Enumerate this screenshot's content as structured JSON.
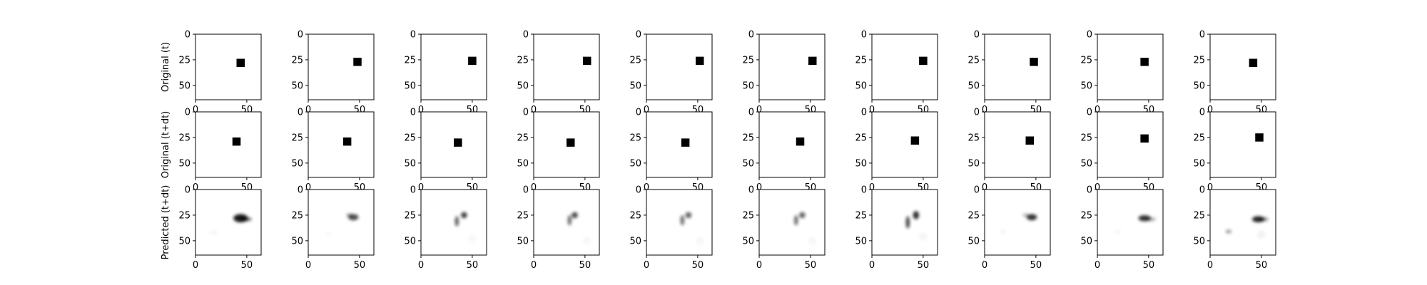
{
  "chart_data": {
    "type": "heatmap",
    "layout": {
      "rows": 3,
      "cols": 10
    },
    "row_labels": [
      "Original (t)",
      "Original (t+dt)",
      "Predicted (t+dt)"
    ],
    "axes": {
      "xlim": [
        0,
        64
      ],
      "ylim": [
        64,
        0
      ],
      "xticks": [
        0,
        50
      ],
      "yticks": [
        0,
        25,
        50
      ],
      "xtick_labels": [
        "0",
        "50"
      ],
      "ytick_labels": [
        "0",
        "25",
        "50"
      ],
      "xtick_labels_shown_on_row": 3
    },
    "colormap": "gray_r",
    "square_size": 8,
    "original_t": [
      {
        "x": 44,
        "y": 28
      },
      {
        "x": 48,
        "y": 27
      },
      {
        "x": 50,
        "y": 26
      },
      {
        "x": 52,
        "y": 26
      },
      {
        "x": 52,
        "y": 26
      },
      {
        "x": 52,
        "y": 26
      },
      {
        "x": 50,
        "y": 26
      },
      {
        "x": 48,
        "y": 27
      },
      {
        "x": 46,
        "y": 27
      },
      {
        "x": 42,
        "y": 28
      }
    ],
    "original_tdt": [
      {
        "x": 40,
        "y": 29
      },
      {
        "x": 38,
        "y": 29
      },
      {
        "x": 36,
        "y": 30
      },
      {
        "x": 36,
        "y": 30
      },
      {
        "x": 38,
        "y": 30
      },
      {
        "x": 40,
        "y": 29
      },
      {
        "x": 42,
        "y": 28
      },
      {
        "x": 44,
        "y": 28
      },
      {
        "x": 46,
        "y": 26
      },
      {
        "x": 48,
        "y": 25
      }
    ],
    "predicted_tdt": [
      [
        {
          "x": 44,
          "y": 28,
          "sx": 7,
          "sy": 4,
          "a": 0.9
        },
        {
          "x": 49,
          "y": 29,
          "sx": 6,
          "sy": 2,
          "a": 0.55
        },
        {
          "x": 18,
          "y": 42,
          "sx": 4,
          "sy": 2,
          "a": 0.04
        }
      ],
      [
        {
          "x": 44,
          "y": 27,
          "sx": 5,
          "sy": 3,
          "a": 0.7
        },
        {
          "x": 40,
          "y": 25,
          "sx": 3,
          "sy": 2,
          "a": 0.3
        },
        {
          "x": 20,
          "y": 43,
          "sx": 3,
          "sy": 2,
          "a": 0.03
        }
      ],
      [
        {
          "x": 42,
          "y": 25,
          "sx": 3,
          "sy": 3,
          "a": 0.75
        },
        {
          "x": 35,
          "y": 31,
          "sx": 2,
          "sy": 5,
          "a": 0.6
        },
        {
          "x": 50,
          "y": 48,
          "sx": 4,
          "sy": 4,
          "a": 0.03
        }
      ],
      [
        {
          "x": 40,
          "y": 25,
          "sx": 3,
          "sy": 3,
          "a": 0.7
        },
        {
          "x": 35,
          "y": 30,
          "sx": 2,
          "sy": 5,
          "a": 0.55
        },
        {
          "x": 52,
          "y": 50,
          "sx": 4,
          "sy": 4,
          "a": 0.03
        }
      ],
      [
        {
          "x": 41,
          "y": 25,
          "sx": 3,
          "sy": 3,
          "a": 0.6
        },
        {
          "x": 35,
          "y": 30,
          "sx": 2,
          "sy": 5,
          "a": 0.55
        },
        {
          "x": 52,
          "y": 50,
          "sx": 4,
          "sy": 4,
          "a": 0.03
        }
      ],
      [
        {
          "x": 42,
          "y": 25,
          "sx": 3,
          "sy": 3,
          "a": 0.6
        },
        {
          "x": 36,
          "y": 30,
          "sx": 2,
          "sy": 5,
          "a": 0.55
        },
        {
          "x": 52,
          "y": 50,
          "sx": 4,
          "sy": 4,
          "a": 0.03
        }
      ],
      [
        {
          "x": 43,
          "y": 25,
          "sx": 3,
          "sy": 4,
          "a": 0.8
        },
        {
          "x": 35,
          "y": 32,
          "sx": 2,
          "sy": 6,
          "a": 0.7
        },
        {
          "x": 50,
          "y": 46,
          "sx": 4,
          "sy": 4,
          "a": 0.04
        }
      ],
      [
        {
          "x": 46,
          "y": 27,
          "sx": 5,
          "sy": 3,
          "a": 0.8
        },
        {
          "x": 40,
          "y": 25,
          "sx": 3,
          "sy": 2,
          "a": 0.25
        },
        {
          "x": 18,
          "y": 41,
          "sx": 3,
          "sy": 2,
          "a": 0.04
        }
      ],
      [
        {
          "x": 46,
          "y": 28,
          "sx": 6,
          "sy": 3,
          "a": 0.8
        },
        {
          "x": 52,
          "y": 29,
          "sx": 5,
          "sy": 2,
          "a": 0.3
        },
        {
          "x": 20,
          "y": 41,
          "sx": 3,
          "sy": 2,
          "a": 0.04
        }
      ],
      [
        {
          "x": 47,
          "y": 29,
          "sx": 6,
          "sy": 3,
          "a": 0.85
        },
        {
          "x": 52,
          "y": 29,
          "sx": 5,
          "sy": 2,
          "a": 0.4
        },
        {
          "x": 18,
          "y": 41,
          "sx": 3,
          "sy": 2,
          "a": 0.35
        },
        {
          "x": 50,
          "y": 44,
          "sx": 4,
          "sy": 4,
          "a": 0.05
        }
      ]
    ]
  }
}
